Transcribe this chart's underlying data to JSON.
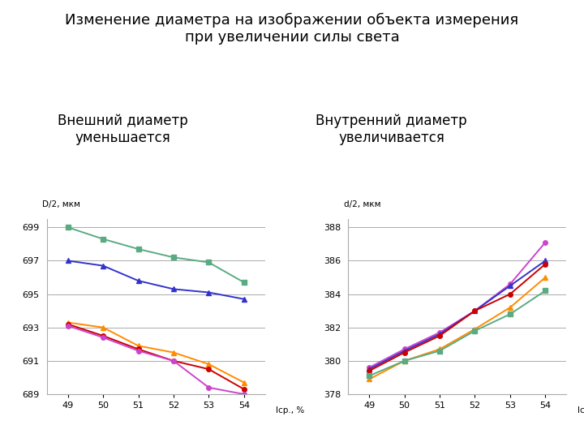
{
  "title": "Изменение диаметра на изображении объекта измерения\nпри увеличении силы света",
  "subtitle_left": "Внешний диаметр\nуменьшается",
  "subtitle_right": "Внутренний диаметр\nувеличивается",
  "x": [
    49,
    50,
    51,
    52,
    53,
    54
  ],
  "xlabel": "Iср., %",
  "ylabel_left": "D/2, мкм",
  "ylabel_right": "d/2, мкм",
  "left_series": [
    {
      "color": "#5AAB82",
      "marker": "s",
      "values": [
        699.0,
        698.3,
        697.7,
        697.2,
        696.9,
        695.7
      ]
    },
    {
      "color": "#3333CC",
      "marker": "^",
      "values": [
        697.0,
        696.7,
        695.8,
        695.3,
        695.1,
        694.7
      ]
    },
    {
      "color": "#FF8C00",
      "marker": "^",
      "values": [
        693.3,
        693.0,
        691.9,
        691.5,
        690.8,
        689.7
      ]
    },
    {
      "color": "#CC0000",
      "marker": "o",
      "values": [
        693.2,
        692.5,
        691.7,
        691.0,
        690.5,
        689.3
      ]
    },
    {
      "color": "#CC44CC",
      "marker": "o",
      "values": [
        693.1,
        692.4,
        691.6,
        691.0,
        689.4,
        689.0
      ]
    }
  ],
  "right_series": [
    {
      "color": "#CC44CC",
      "marker": "o",
      "values": [
        379.6,
        380.7,
        381.7,
        383.0,
        384.6,
        387.1
      ]
    },
    {
      "color": "#3333CC",
      "marker": "^",
      "values": [
        379.5,
        380.6,
        381.6,
        383.0,
        384.5,
        386.0
      ]
    },
    {
      "color": "#CC0000",
      "marker": "o",
      "values": [
        379.4,
        380.5,
        381.5,
        383.0,
        384.0,
        385.8
      ]
    },
    {
      "color": "#FF8C00",
      "marker": "^",
      "values": [
        378.9,
        380.0,
        380.7,
        381.9,
        383.2,
        385.0
      ]
    },
    {
      "color": "#5AAB82",
      "marker": "s",
      "values": [
        379.1,
        380.0,
        380.6,
        381.8,
        382.8,
        384.2
      ]
    }
  ],
  "left_ylim": [
    689,
    699.5
  ],
  "right_ylim": [
    378,
    388.5
  ],
  "left_yticks": [
    689,
    691,
    693,
    695,
    697,
    699
  ],
  "right_yticks": [
    378,
    380,
    382,
    384,
    386,
    388
  ],
  "bg_color": "#FFFFFF",
  "title_fontsize": 13,
  "label_fontsize": 8,
  "subtitle_fontsize": 12,
  "axis_label_fontsize": 7.5
}
